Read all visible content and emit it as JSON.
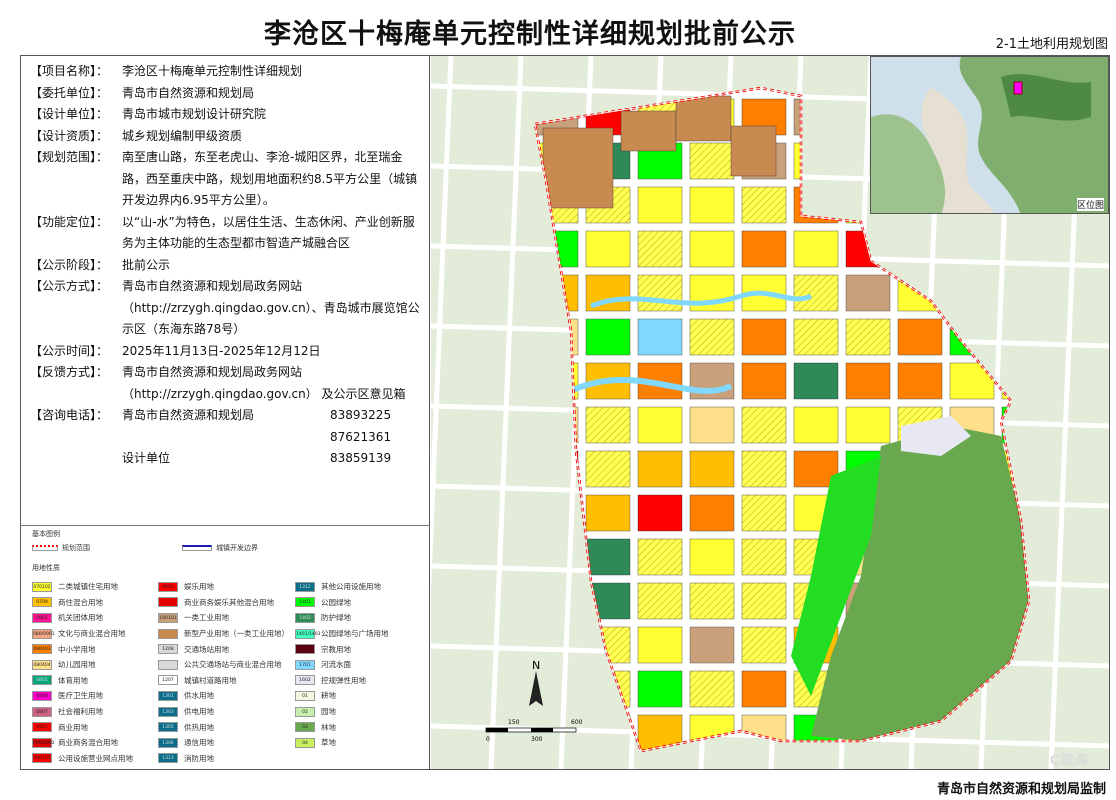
{
  "title": "李沧区十梅庵单元控制性详细规划批前公示",
  "subtitle": "2-1土地利用规划图",
  "info": [
    {
      "label": "【项目名称】：",
      "value": "李沧区十梅庵单元控制性详细规划"
    },
    {
      "label": "【委托单位】：",
      "value": "青岛市自然资源和规划局"
    },
    {
      "label": "【设计单位】：",
      "value": "青岛市城市规划设计研究院"
    },
    {
      "label": "【设计资质】：",
      "value": "城乡规划编制甲级资质"
    },
    {
      "label": "【规划范围】：",
      "value": "南至唐山路，东至老虎山、李沧-城阳区界，北至瑞金路，西至重庆中路，规划用地面积约8.5平方公里（城镇开发边界内6.95平方公里）。"
    },
    {
      "label": "【功能定位】：",
      "value": "以“山-水”为特色，以居住生活、生态休闲、产业创新服务为主体功能的生态型都市智造产城融合区"
    },
    {
      "label": "【公示阶段】：",
      "value": "批前公示"
    },
    {
      "label": "【公示方式】：",
      "value": "青岛市自然资源和规划局政务网站（http://zrzygh.qingdao.gov.cn）、青岛城市展览馆公示区（东海东路78号）"
    },
    {
      "label": "【公示时间】：",
      "value": "2025年11月13日-2025年12月12日"
    },
    {
      "label": "【反馈方式】：",
      "value": "青岛市自然资源和规划局政务网站（http://zrzygh.qingdao.gov.cn） 及公示区意见箱"
    }
  ],
  "consult": {
    "label": "【咨询电话】：",
    "rows": [
      {
        "name": "青岛市自然资源和规划局",
        "tel": "83893225"
      },
      {
        "name": "",
        "tel": "87621361"
      },
      {
        "name": "设计单位",
        "tel": "83859139"
      }
    ]
  },
  "legend": {
    "basic_title": "基本图例",
    "boundary": "规划范围",
    "dev_boundary": "城镇开发边界",
    "landuse_title": "用地性质",
    "items": [
      [
        {
          "code": "070102",
          "label": "二类城镇住宅用地",
          "color": "#ffff33"
        },
        {
          "code": "0709",
          "label": "商住混合用地",
          "color": "#ffbf00"
        },
        {
          "code": "0801",
          "label": "机关团体用地",
          "color": "#ff1493"
        },
        {
          "code": "080/0901",
          "label": "文化与商业混合用地",
          "color": "#f4a582"
        },
        {
          "code": "080403",
          "label": "中小学用地",
          "color": "#ff7f00"
        },
        {
          "code": "080404",
          "label": "幼儿园用地",
          "color": "#ffe08a"
        },
        {
          "code": "0805",
          "label": "体育用地",
          "color": "#00a57a"
        },
        {
          "code": "0806",
          "label": "医疗卫生用地",
          "color": "#ff00cc"
        },
        {
          "code": "0807",
          "label": "社会福利用地",
          "color": "#d06080"
        },
        {
          "code": "0901",
          "label": "商业用地",
          "color": "#ff0000"
        },
        {
          "code": "090/0902",
          "label": "商业商务混合用地",
          "color": "#e00000"
        },
        {
          "code": "090105",
          "label": "公用设施营业网点用地",
          "color": "#ff0000"
        }
      ],
      [
        {
          "code": "0903",
          "label": "娱乐用地",
          "color": "#ff0000"
        },
        {
          "code": "",
          "label": "商业商务娱乐其他混合用地",
          "color": "#e00000"
        },
        {
          "code": "100101",
          "label": "一类工业用地",
          "color": "#c8a07a"
        },
        {
          "code": "",
          "label": "新型产业用地（一类工业用地）",
          "color": "#c88a50"
        },
        {
          "code": "1208",
          "label": "交通场站用地",
          "color": "#d9d9d9"
        },
        {
          "code": "",
          "label": "公共交通场站与商业混合用地",
          "color": "#d9d9d9"
        },
        {
          "code": "1207",
          "label": "城镇村道路用地",
          "color": "#ffffff"
        },
        {
          "code": "1301",
          "label": "供水用地",
          "color": "#0a6e8a"
        },
        {
          "code": "1303",
          "label": "供电用地",
          "color": "#0a6e8a"
        },
        {
          "code": "1305",
          "label": "供热用地",
          "color": "#0a6e8a"
        },
        {
          "code": "1306",
          "label": "通信用地",
          "color": "#0a6e8a"
        },
        {
          "code": "1313",
          "label": "消防用地",
          "color": "#0a6e8a"
        }
      ],
      [
        {
          "code": "1312",
          "label": "其他公用设施用地",
          "color": "#0a6e8a"
        },
        {
          "code": "1401",
          "label": "公园绿地",
          "color": "#00ff00"
        },
        {
          "code": "1402",
          "label": "防护绿地",
          "color": "#2e8b57"
        },
        {
          "code": "1401/1403",
          "label": "公园绿地与广场用地",
          "color": "#40ffc0"
        },
        {
          "code": "",
          "label": "宗教用地",
          "color": "#5a0010"
        },
        {
          "code": "1701",
          "label": "河流水面",
          "color": "#80d8ff"
        },
        {
          "code": "1602",
          "label": "控规弹性用地",
          "color": "#e8e8f4"
        },
        {
          "code": "01",
          "label": "耕地",
          "color": "#f4f8e0"
        },
        {
          "code": "02",
          "label": "园地",
          "color": "#c8eeb0"
        },
        {
          "code": "03",
          "label": "林地",
          "color": "#6aa84f"
        },
        {
          "code": "04",
          "label": "草地",
          "color": "#c8f060"
        }
      ]
    ]
  },
  "map": {
    "north": "N",
    "scale_labels": [
      "0",
      "150",
      "300",
      "600"
    ],
    "inset_label": "区位图"
  },
  "footer": "青岛市自然资源和规划局监制"
}
